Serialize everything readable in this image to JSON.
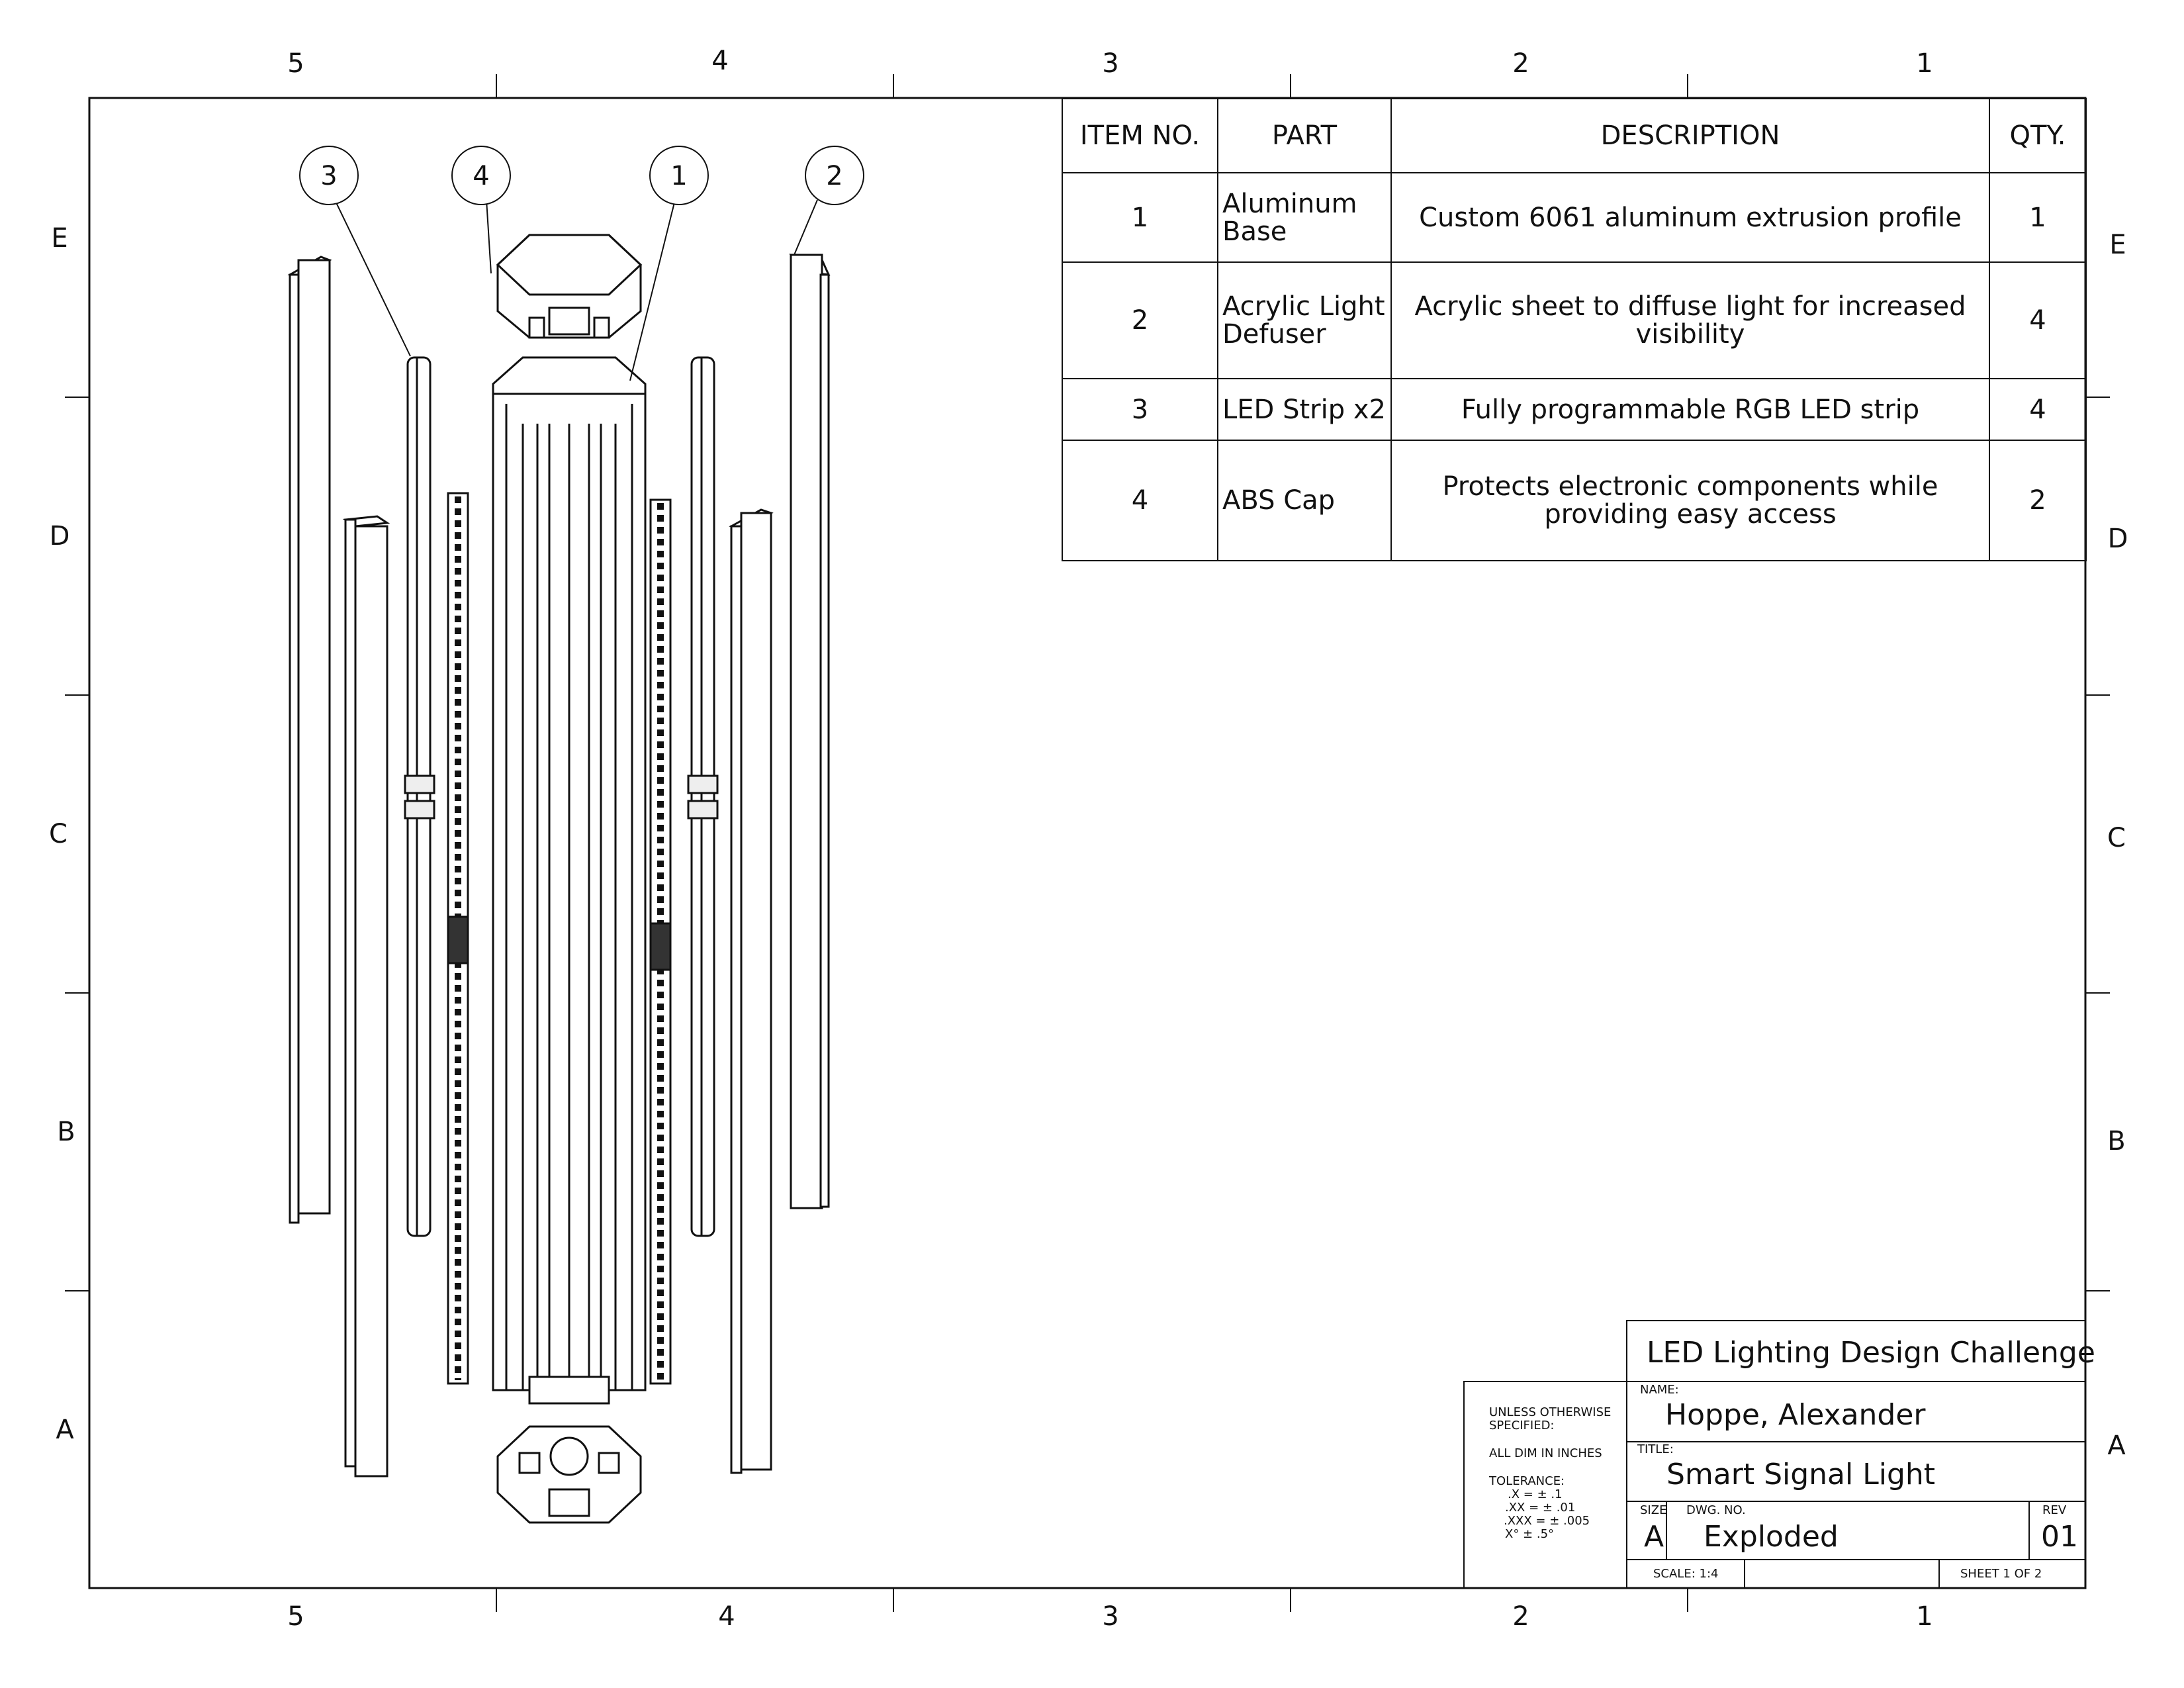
{
  "border": {
    "columns": [
      "5",
      "4",
      "3",
      "2",
      "1"
    ],
    "rows": [
      "E",
      "D",
      "C",
      "B",
      "A"
    ]
  },
  "balloons": [
    "3",
    "4",
    "1",
    "2"
  ],
  "bom": {
    "headers": [
      "ITEM NO.",
      "PART",
      "DESCRIPTION",
      "QTY."
    ],
    "rows": [
      {
        "item": "1",
        "part_line1": "Aluminum",
        "part_line2": "Base",
        "description_line1": "Custom 6061 aluminum extrusion profile",
        "description_line2": "",
        "qty": "1"
      },
      {
        "item": "2",
        "part_line1": "Acrylic Light",
        "part_line2": "Defuser",
        "description_line1": "Acrylic sheet to diffuse light for increased",
        "description_line2": "visibility",
        "qty": "4"
      },
      {
        "item": "3",
        "part_line1": "LED Strip x2",
        "part_line2": "",
        "description_line1": "Fully programmable RGB LED strip",
        "description_line2": "",
        "qty": "4"
      },
      {
        "item": "4",
        "part_line1": "ABS Cap",
        "part_line2": "",
        "description_line1": "Protects electronic components while",
        "description_line2": "providing easy access",
        "qty": "2"
      }
    ]
  },
  "title_block": {
    "company": "LED Lighting Design Challenge",
    "name_label": "NAME:",
    "name": "Hoppe, Alexander",
    "title_label": "TITLE:",
    "title": "Smart Signal Light",
    "size_label": "SIZE",
    "size": "A",
    "dwg_no_label": "DWG.  NO.",
    "dwg_no": "Exploded",
    "rev_label": "REV",
    "rev": "01",
    "scale": "SCALE: 1:4",
    "sheet": "SHEET 1 OF 2",
    "notes": {
      "line1": "UNLESS OTHERWISE",
      "line2": "SPECIFIED:",
      "line3": "ALL DIM IN INCHES",
      "line4": "TOLERANCE:",
      "line5": ".X = ± .1",
      "line6": ".XX = ± .01",
      "line7": ".XXX = ± .005",
      "line8": "X° ± .5°"
    }
  }
}
